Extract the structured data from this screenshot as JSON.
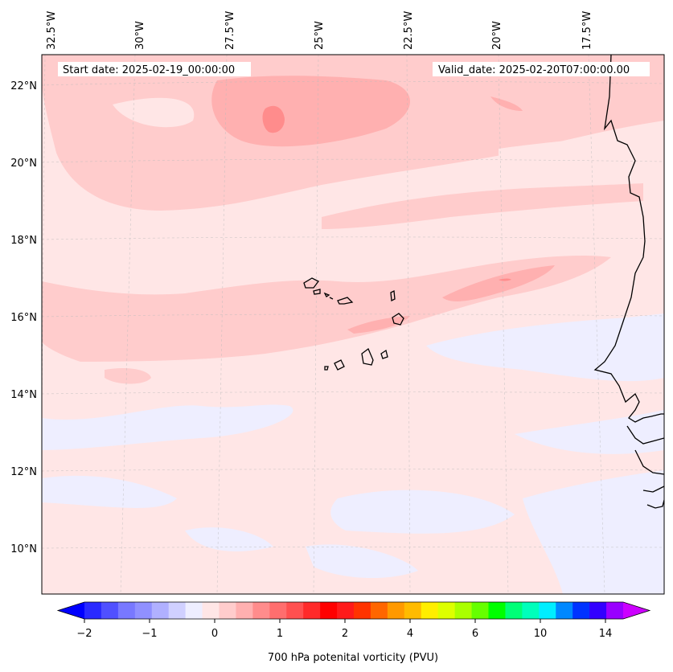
{
  "header": {
    "start_date": "Start date: 2025-02-19_00:00:00",
    "valid_date": "Valid_date: 2025-02-20T07:00:00.00"
  },
  "map": {
    "longitude_labels": [
      "32.5°W",
      "30°W",
      "27.5°W",
      "25°W",
      "22.5°W",
      "20°W",
      "17.5°W"
    ],
    "latitude_labels": [
      "22°N",
      "20°N",
      "18°N",
      "16°N",
      "14°N",
      "12°N",
      "10°N"
    ],
    "region": "Eastern tropical Atlantic, Cabo Verde islands and West African coast",
    "features": [
      "coastline",
      "gridlines",
      "filled contours"
    ]
  },
  "colorbar": {
    "label": "700 hPa potenital vorticity (PVU)",
    "tick_labels": [
      "−2",
      "−1",
      "0",
      "1",
      "2",
      "4",
      "6",
      "10",
      "14"
    ],
    "extend": "both",
    "colors": [
      "#0000ff",
      "#2a2aff",
      "#5050ff",
      "#7878ff",
      "#9090ff",
      "#b0b0ff",
      "#d0d0ff",
      "#eeeeff",
      "#ffe6e6",
      "#ffcccc",
      "#ffb0b0",
      "#ff8c8c",
      "#ff6e6e",
      "#ff5050",
      "#ff2a2a",
      "#ff0000",
      "#ff1a1a",
      "#ff3300",
      "#ff6600",
      "#ff9900",
      "#ffbb00",
      "#ffee00",
      "#ddff00",
      "#aaff00",
      "#66ff00",
      "#00ff00",
      "#00ff77",
      "#00ffbb",
      "#00eeff",
      "#0088ff",
      "#0033ff",
      "#3300ff",
      "#9900ff",
      "#cc00ff"
    ]
  }
}
